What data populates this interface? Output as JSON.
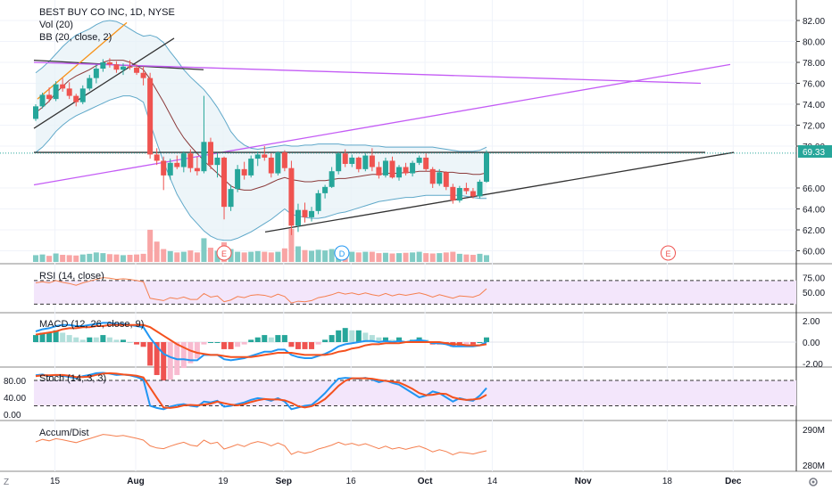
{
  "colors": {
    "up": "#26a69a",
    "down": "#ef5350",
    "bb_band": "#5fa8c9",
    "bb_basis": "#8b3a3a",
    "bb_fill": "#e6f1f7",
    "purple": "#c45cf5",
    "orange_trend": "#f7931a",
    "rsi_line": "#f57f4f",
    "rsi_bg": "#f3e6fb",
    "macd_line": "#2196f3",
    "signal_line": "#f4511e",
    "hist_up": "#26a69a",
    "hist_up_light": "#b2dfdb",
    "hist_down": "#ef5350",
    "hist_down_light": "#f8bbd0",
    "stoch_k": "#2196f3",
    "stoch_d": "#f4511e",
    "accum_line": "#f57f4f",
    "vol_up": "#80cbc4",
    "vol_down": "#f8a5a5",
    "price_label_bg": "#26a69a"
  },
  "header": {
    "title": "BEST BUY CO INC, 1D, NYSE",
    "vol": "Vol (20)",
    "bb": "BB (20, close, 2)"
  },
  "panes": {
    "rsi": "RSI (14, close)",
    "macd": "MACD (12, 26, close, 9)",
    "stoch": "Stoch (14, 3, 3)",
    "accum": "Accum/Dist"
  },
  "price_label": "69.33",
  "chart_data": {
    "type": "candlestick",
    "symbol": "BEST BUY CO INC",
    "interval": "1D",
    "exchange": "NYSE",
    "last_price": 69.33,
    "price_axis": {
      "ticks": [
        "82.00",
        "80.00",
        "78.00",
        "76.00",
        "74.00",
        "72.00",
        "70.00",
        "66.00",
        "64.00",
        "62.00",
        "60.00"
      ],
      "range": [
        59,
        83
      ]
    },
    "rsi_axis": {
      "ticks": [
        "75.00",
        "50.00"
      ],
      "bands": [
        70,
        30
      ]
    },
    "macd_axis": {
      "ticks": [
        "2.00",
        "0.00",
        "-2.00"
      ]
    },
    "stoch_axis": {
      "ticks": [
        "80.00",
        "40.00",
        "0.00"
      ],
      "bands": [
        80,
        20
      ]
    },
    "accum_axis": {
      "ticks": [
        "290M",
        "280M"
      ]
    },
    "x_ticks": [
      "15",
      "Aug",
      "19",
      "Sep",
      "16",
      "Oct",
      "14",
      "Nov",
      "18",
      "Dec"
    ],
    "event_markers": [
      {
        "label": "E",
        "date": "Aug 29"
      },
      {
        "label": "D",
        "date": "Sep 17"
      },
      {
        "label": "E",
        "date": "Nov 26"
      }
    ],
    "candles": [
      [
        72.6,
        74.0,
        72.4,
        73.8
      ],
      [
        73.8,
        75.1,
        73.6,
        74.9
      ],
      [
        74.9,
        75.6,
        74.2,
        74.5
      ],
      [
        74.5,
        76.2,
        74.3,
        75.9
      ],
      [
        75.9,
        76.5,
        75.2,
        75.5
      ],
      [
        75.5,
        76.1,
        74.5,
        74.8
      ],
      [
        74.8,
        75.0,
        73.8,
        74.2
      ],
      [
        74.2,
        75.8,
        74.0,
        75.5
      ],
      [
        75.5,
        76.8,
        75.3,
        76.5
      ],
      [
        76.5,
        77.8,
        76.0,
        77.4
      ],
      [
        77.4,
        78.3,
        77.1,
        78.0
      ],
      [
        78.0,
        78.4,
        77.5,
        77.8
      ],
      [
        77.8,
        78.1,
        77.0,
        77.3
      ],
      [
        77.3,
        77.9,
        76.8,
        77.6
      ],
      [
        77.6,
        78.2,
        77.3,
        77.5
      ],
      [
        77.5,
        77.8,
        76.8,
        77.0
      ],
      [
        77.0,
        77.6,
        75.8,
        76.5
      ],
      [
        76.5,
        77.0,
        68.8,
        69.2
      ],
      [
        69.2,
        69.8,
        68.2,
        68.6
      ],
      [
        68.6,
        69.0,
        65.8,
        67.2
      ],
      [
        67.2,
        68.8,
        66.8,
        68.4
      ],
      [
        68.4,
        69.1,
        67.8,
        68.0
      ],
      [
        68.0,
        69.5,
        67.5,
        69.3
      ],
      [
        69.3,
        69.7,
        67.5,
        67.9
      ],
      [
        67.9,
        69.0,
        67.2,
        67.6
      ],
      [
        67.6,
        74.8,
        67.4,
        70.4
      ],
      [
        70.4,
        70.8,
        67.8,
        68.2
      ],
      [
        68.2,
        69.3,
        67.0,
        68.9
      ],
      [
        68.9,
        69.0,
        63.0,
        64.2
      ],
      [
        64.2,
        66.3,
        63.8,
        65.9
      ],
      [
        65.9,
        68.2,
        65.6,
        67.8
      ],
      [
        67.8,
        68.5,
        66.8,
        67.2
      ],
      [
        67.2,
        69.1,
        67.0,
        68.8
      ],
      [
        68.8,
        69.5,
        68.1,
        69.2
      ],
      [
        69.2,
        70.0,
        68.6,
        68.9
      ],
      [
        68.9,
        69.3,
        67.0,
        67.4
      ],
      [
        67.4,
        69.5,
        67.2,
        69.4
      ],
      [
        69.4,
        69.6,
        67.6,
        67.9
      ],
      [
        67.9,
        68.6,
        61.5,
        62.4
      ],
      [
        62.4,
        64.5,
        61.8,
        63.9
      ],
      [
        63.9,
        64.6,
        62.7,
        63.2
      ],
      [
        63.2,
        64.2,
        62.8,
        63.8
      ],
      [
        63.8,
        65.8,
        63.5,
        65.5
      ],
      [
        65.5,
        66.3,
        65.0,
        66.1
      ],
      [
        66.1,
        68.0,
        66.0,
        67.6
      ],
      [
        67.6,
        69.4,
        67.3,
        69.3
      ],
      [
        69.3,
        69.7,
        68.0,
        68.3
      ],
      [
        68.3,
        69.2,
        68.0,
        68.9
      ],
      [
        68.9,
        69.0,
        67.5,
        67.8
      ],
      [
        67.8,
        69.3,
        67.6,
        69.1
      ],
      [
        69.1,
        69.8,
        67.6,
        68.0
      ],
      [
        68.0,
        68.5,
        66.9,
        67.2
      ],
      [
        67.2,
        68.9,
        67.0,
        68.6
      ],
      [
        68.6,
        69.0,
        66.9,
        67.0
      ],
      [
        67.0,
        68.2,
        66.7,
        68.0
      ],
      [
        68.0,
        68.4,
        67.2,
        67.4
      ],
      [
        67.4,
        68.6,
        67.1,
        68.4
      ],
      [
        68.4,
        69.1,
        68.2,
        68.9
      ],
      [
        68.9,
        69.3,
        67.6,
        67.8
      ],
      [
        67.8,
        68.0,
        66.0,
        66.4
      ],
      [
        66.4,
        67.8,
        66.2,
        67.5
      ],
      [
        67.5,
        67.6,
        65.8,
        66.1
      ],
      [
        66.1,
        66.4,
        64.5,
        64.8
      ],
      [
        64.8,
        66.2,
        64.6,
        66.0
      ],
      [
        66.0,
        66.5,
        65.4,
        65.7
      ],
      [
        65.7,
        66.0,
        65.0,
        65.2
      ],
      [
        65.2,
        66.8,
        65.0,
        66.6
      ],
      [
        66.6,
        69.6,
        66.5,
        69.33
      ]
    ],
    "bb_upper": [
      77.0,
      77.5,
      78.1,
      78.8,
      79.5,
      80.1,
      80.6,
      80.9,
      81.2,
      81.6,
      81.9,
      82.0,
      81.9,
      81.6,
      81.2,
      80.8,
      80.5,
      80.6,
      80.4,
      79.9,
      79.0,
      78.2,
      77.3,
      76.6,
      76.0,
      75.4,
      74.6,
      73.7,
      72.6,
      71.4,
      70.6,
      70.1,
      69.8,
      69.7,
      69.8,
      69.9,
      70.0,
      70.1,
      70.0,
      70.0,
      70.1,
      70.1,
      70.2,
      70.2,
      70.2,
      70.2,
      70.1,
      70.1,
      70.1,
      70.1,
      70.0,
      70.0,
      69.9,
      69.9,
      69.9,
      69.9,
      69.9,
      69.9,
      69.9,
      69.9,
      69.8,
      69.7,
      69.6,
      69.5,
      69.5,
      69.5,
      69.6,
      69.9
    ],
    "bb_lower": [
      69.4,
      69.9,
      70.6,
      71.4,
      72.0,
      72.5,
      72.9,
      73.2,
      73.5,
      73.8,
      74.1,
      74.4,
      74.6,
      74.8,
      74.8,
      74.6,
      74.2,
      72.2,
      70.3,
      68.5,
      66.9,
      65.4,
      64.3,
      63.3,
      62.6,
      61.9,
      61.4,
      61.1,
      61.0,
      61.0,
      61.2,
      61.5,
      61.8,
      62.2,
      62.6,
      63.0,
      63.5,
      64.0,
      63.5,
      63.3,
      63.2,
      63.1,
      63.1,
      63.2,
      63.4,
      63.6,
      63.7,
      63.9,
      64.1,
      64.3,
      64.5,
      64.7,
      64.8,
      64.9,
      65.0,
      65.1,
      65.1,
      65.2,
      65.3,
      65.3,
      65.3,
      65.3,
      65.3,
      65.3,
      65.2,
      65.1,
      65.0,
      65.0
    ],
    "bb_basis": [
      73.2,
      73.7,
      74.3,
      75.1,
      75.7,
      76.3,
      76.7,
      77.0,
      77.3,
      77.7,
      78.0,
      78.2,
      78.2,
      78.2,
      78.0,
      77.7,
      77.3,
      76.4,
      75.3,
      74.2,
      73.0,
      71.8,
      70.8,
      70.0,
      69.3,
      68.6,
      68.0,
      67.4,
      66.8,
      66.2,
      65.9,
      65.8,
      65.8,
      66.0,
      66.2,
      66.5,
      66.8,
      67.0,
      66.8,
      66.7,
      66.6,
      66.6,
      66.7,
      66.7,
      66.8,
      66.9,
      66.9,
      67.0,
      67.1,
      67.2,
      67.3,
      67.3,
      67.4,
      67.4,
      67.4,
      67.5,
      67.5,
      67.6,
      67.6,
      67.6,
      67.6,
      67.5,
      67.5,
      67.4,
      67.4,
      67.3,
      67.3,
      67.45
    ],
    "volume": [
      0.2,
      0.22,
      0.18,
      0.25,
      0.21,
      0.2,
      0.19,
      0.22,
      0.24,
      0.28,
      0.26,
      0.23,
      0.22,
      0.2,
      0.21,
      0.22,
      0.24,
      0.95,
      0.6,
      0.38,
      0.32,
      0.28,
      0.3,
      0.34,
      0.28,
      0.7,
      0.42,
      0.33,
      0.58,
      0.38,
      0.3,
      0.28,
      0.3,
      0.32,
      0.3,
      0.28,
      0.3,
      0.4,
      0.98,
      0.46,
      0.35,
      0.33,
      0.36,
      0.34,
      0.38,
      0.42,
      0.32,
      0.3,
      0.28,
      0.3,
      0.3,
      0.26,
      0.27,
      0.25,
      0.26,
      0.27,
      0.28,
      0.3,
      0.26,
      0.25,
      0.26,
      0.28,
      0.3,
      0.24,
      0.22,
      0.21,
      0.24,
      0.2
    ],
    "rsi": [
      66,
      68,
      66,
      70,
      67,
      65,
      62,
      66,
      69,
      72,
      75,
      74,
      72,
      73,
      72,
      70,
      68,
      40,
      38,
      36,
      41,
      39,
      42,
      38,
      38,
      48,
      42,
      44,
      34,
      37,
      43,
      41,
      45,
      46,
      45,
      42,
      47,
      43,
      32,
      35,
      34,
      36,
      41,
      43,
      46,
      50,
      47,
      49,
      46,
      49,
      46,
      44,
      48,
      44,
      47,
      45,
      47,
      49,
      46,
      42,
      46,
      43,
      40,
      44,
      43,
      42,
      46,
      56
    ],
    "macd": [
      1.0,
      1.2,
      1.3,
      1.5,
      1.6,
      1.6,
      1.5,
      1.5,
      1.6,
      1.7,
      1.8,
      1.8,
      1.7,
      1.7,
      1.6,
      1.5,
      1.4,
      0.4,
      -0.4,
      -1.1,
      -1.4,
      -1.6,
      -1.6,
      -1.7,
      -1.7,
      -1.2,
      -1.2,
      -1.2,
      -1.6,
      -1.7,
      -1.6,
      -1.5,
      -1.3,
      -1.1,
      -0.9,
      -0.9,
      -0.7,
      -0.7,
      -1.2,
      -1.4,
      -1.5,
      -1.5,
      -1.3,
      -1.1,
      -0.8,
      -0.4,
      -0.2,
      -0.1,
      0.0,
      0.1,
      0.1,
      0.0,
      0.1,
      0.0,
      0.1,
      0.0,
      0.1,
      0.2,
      0.1,
      -0.1,
      -0.1,
      -0.2,
      -0.4,
      -0.4,
      -0.4,
      -0.4,
      -0.3,
      0.0
    ],
    "signal": [
      0.7,
      0.8,
      0.9,
      1.0,
      1.2,
      1.3,
      1.3,
      1.4,
      1.4,
      1.5,
      1.5,
      1.6,
      1.6,
      1.6,
      1.6,
      1.6,
      1.6,
      1.4,
      1.0,
      0.6,
      0.2,
      -0.2,
      -0.5,
      -0.8,
      -1.0,
      -1.1,
      -1.2,
      -1.2,
      -1.3,
      -1.4,
      -1.4,
      -1.4,
      -1.4,
      -1.3,
      -1.2,
      -1.1,
      -1.0,
      -1.0,
      -1.0,
      -1.1,
      -1.2,
      -1.2,
      -1.2,
      -1.2,
      -1.1,
      -0.9,
      -0.8,
      -0.6,
      -0.5,
      -0.3,
      -0.2,
      -0.2,
      -0.1,
      -0.1,
      -0.1,
      0.0,
      0.0,
      0.0,
      0.0,
      0.0,
      0.0,
      -0.1,
      -0.2,
      -0.2,
      -0.3,
      -0.3,
      -0.3,
      -0.2
    ],
    "stoch_k": [
      92,
      94,
      90,
      93,
      91,
      88,
      85,
      90,
      93,
      97,
      98,
      96,
      93,
      94,
      92,
      88,
      82,
      20,
      15,
      12,
      18,
      22,
      24,
      20,
      18,
      30,
      28,
      32,
      18,
      20,
      24,
      28,
      34,
      38,
      36,
      32,
      38,
      30,
      12,
      16,
      20,
      22,
      35,
      50,
      68,
      84,
      86,
      85,
      84,
      86,
      82,
      76,
      80,
      74,
      70,
      60,
      50,
      40,
      44,
      54,
      50,
      40,
      30,
      38,
      34,
      32,
      44,
      62
    ],
    "stoch_d": [
      90,
      92,
      92,
      93,
      93,
      91,
      88,
      88,
      89,
      93,
      96,
      97,
      96,
      94,
      93,
      91,
      87,
      63,
      39,
      16,
      15,
      17,
      21,
      22,
      21,
      23,
      25,
      30,
      26,
      23,
      21,
      24,
      29,
      33,
      36,
      35,
      35,
      33,
      27,
      19,
      16,
      19,
      26,
      36,
      51,
      67,
      79,
      85,
      85,
      85,
      84,
      81,
      79,
      77,
      75,
      68,
      60,
      50,
      45,
      46,
      49,
      48,
      40,
      36,
      34,
      35,
      37,
      46
    ],
    "accum": [
      286.5,
      287.2,
      286.8,
      287.4,
      287.1,
      286.7,
      286.3,
      286.9,
      287.4,
      288.0,
      288.6,
      288.4,
      288.1,
      288.3,
      287.9,
      287.5,
      287.0,
      285.4,
      284.8,
      284.6,
      285.3,
      285.9,
      286.4,
      285.6,
      285.3,
      287.0,
      286.0,
      286.4,
      284.5,
      285.1,
      285.8,
      285.2,
      286.1,
      286.6,
      286.2,
      285.4,
      286.2,
      285.4,
      283.0,
      283.8,
      283.3,
      283.7,
      284.5,
      285.0,
      285.6,
      286.4,
      285.7,
      286.1,
      285.5,
      286.0,
      285.3,
      284.6,
      285.3,
      284.5,
      284.9,
      284.4,
      284.9,
      285.3,
      284.6,
      283.7,
      284.3,
      283.8,
      282.9,
      283.6,
      283.4,
      283.1,
      283.6,
      284.0
    ]
  }
}
